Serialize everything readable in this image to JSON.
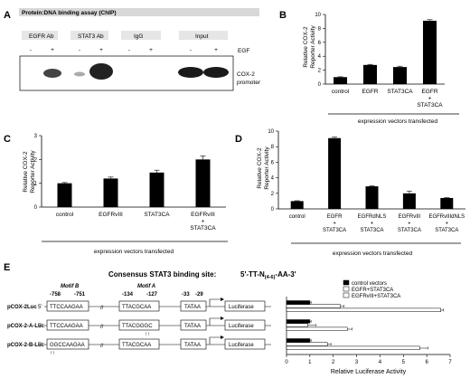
{
  "panel_letters": [
    "A",
    "B",
    "C",
    "D",
    "E"
  ],
  "panel_a": {
    "title": "Protein:DNA binding assay (ChIP)",
    "groups": [
      "EGFR Ab",
      "STAT3 Ab",
      "IgG",
      "Input"
    ],
    "signs": [
      "-",
      "+",
      "-",
      "+",
      "-",
      "+",
      "-",
      "+"
    ],
    "egf_label": "EGF",
    "band_label_1": "COX-2",
    "band_label_2": "promoter"
  },
  "panel_b": {
    "ylabel_1": "Relative COX-2",
    "ylabel_2": "Reporter Activity",
    "xfooter": "expression vectors transfected",
    "categories": [
      [
        "control"
      ],
      [
        "EGFR"
      ],
      [
        "STAT3CA"
      ],
      [
        "EGFR",
        "+",
        "STAT3CA"
      ]
    ]
  },
  "panel_c": {
    "ylabel_1": "Relative COX-2",
    "ylabel_2": "Reporter Activity",
    "xfooter": "expression vectors transfected",
    "categories": [
      [
        "control"
      ],
      [
        "EGFRvIII"
      ],
      [
        "STAT3CA"
      ],
      [
        "EGFRvIII",
        "+",
        "STAT3CA"
      ]
    ]
  },
  "panel_d": {
    "ylabel_1": "Relative COX-2",
    "ylabel_2": "Reporter Activity",
    "xfooter": "expression vectors transfected",
    "categories": [
      [
        "control"
      ],
      [
        "EGFR",
        "+",
        "STAT3CA"
      ],
      [
        "EGFRdNLS",
        "+",
        "STAT3CA"
      ],
      [
        "EGFRvIII",
        "+",
        "STAT3CA"
      ],
      [
        "EGFRvIIIdNLS",
        "+",
        "STAT3CA"
      ]
    ]
  },
  "panel_e": {
    "consensus_label": "Consensus STAT3 binding site:",
    "consensus_seq": "5'-TT-N",
    "consensus_sub": "(4-6)",
    "consensus_end": "-AA-3'",
    "motif_b": "Motif B",
    "motif_a": "Motif A",
    "constructs": [
      {
        "name": "pCOX-2Luc",
        "seq_b": "TTCCAAGAA",
        "seq_a": "TTACGCAA"
      },
      {
        "name": "pCOX-2-A-Luc",
        "seq_b": "TTCCAAGAA",
        "seq_a": "TTACGGGC"
      },
      {
        "name": "pCOX-2-B-Luc",
        "seq_b": "GGCCAAGAA",
        "seq_a": "TTACGCAA"
      }
    ],
    "five_prime": "5'",
    "pos_b": [
      "-758",
      "-751"
    ],
    "pos_a": [
      "-134",
      "-127"
    ],
    "pos_tata": [
      "-33",
      "-29"
    ],
    "tata": "TATAA",
    "luciferase": "Luciferase",
    "mutation_mark": "↑↑"
  },
  "chart_data": [
    {
      "type": "bar",
      "panel": "B",
      "categories": [
        "control",
        "EGFR",
        "STAT3CA",
        "EGFR + STAT3CA"
      ],
      "values": [
        1.0,
        2.75,
        2.45,
        9.1
      ],
      "errors": [
        0.05,
        0.08,
        0.12,
        0.15
      ],
      "ylabel": "Relative COX-2 Reporter Activity",
      "xlabel": "expression vectors transfected",
      "ylim": [
        0,
        10
      ],
      "yticks": [
        0,
        2,
        4,
        6,
        8,
        10
      ],
      "color": "#000000"
    },
    {
      "type": "bar",
      "panel": "C",
      "categories": [
        "control",
        "EGFRvIII",
        "STAT3CA",
        "EGFRvIII + STAT3CA"
      ],
      "values": [
        1.0,
        1.2,
        1.45,
        2.0
      ],
      "errors": [
        0.03,
        0.06,
        0.1,
        0.15
      ],
      "ylabel": "Relative COX-2 Reporter Activity",
      "xlabel": "expression vectors transfected",
      "ylim": [
        0,
        3
      ],
      "yticks": [
        0,
        1,
        2,
        3
      ],
      "color": "#000000"
    },
    {
      "type": "bar",
      "panel": "D",
      "categories": [
        "control",
        "EGFR + STAT3CA",
        "EGFRdNLS + STAT3CA",
        "EGFRvIII + STAT3CA",
        "EGFRvIIIdNLS + STAT3CA"
      ],
      "values": [
        1.0,
        9.1,
        2.9,
        2.0,
        1.4
      ],
      "errors": [
        0.05,
        0.12,
        0.05,
        0.3,
        0.05
      ],
      "ylabel": "Relative COX-2 Reporter Activity",
      "xlabel": "expression vectors transfected",
      "ylim": [
        0,
        10
      ],
      "yticks": [
        0,
        2,
        4,
        6,
        8,
        10
      ],
      "color": "#000000"
    },
    {
      "type": "bar",
      "orientation": "horizontal",
      "panel": "E",
      "categories": [
        "pCOX-2Luc",
        "pCOX-2-A-Luc",
        "pCOX-2-B-Luc"
      ],
      "series": [
        {
          "name": "control vectors",
          "values": [
            1.0,
            1.0,
            1.0
          ],
          "errors": [
            0.05,
            0.05,
            0.05
          ],
          "color": "#000000"
        },
        {
          "name": "EGFR+STAT3CA",
          "values": [
            2.3,
            0.9,
            1.75
          ],
          "errors": [
            0.15,
            0.35,
            0.15
          ],
          "color": "#ffffff"
        },
        {
          "name": "EGFRvIII+STAT3CA",
          "values": [
            6.6,
            2.6,
            5.7
          ],
          "errors": [
            0.12,
            0.2,
            0.35
          ],
          "color": "#ffffff"
        }
      ],
      "xlabel": "Relative Luciferase Activity",
      "xlim": [
        0,
        7
      ],
      "xticks": [
        0,
        1,
        2,
        3,
        4,
        5,
        6,
        7
      ]
    }
  ]
}
